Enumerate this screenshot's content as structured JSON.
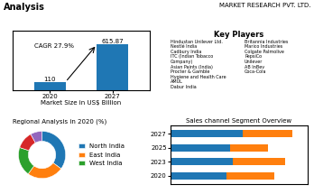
{
  "title": "Analysis",
  "subtitle": "MARKET RESEARCH PVT. LTD.",
  "chart_data": [
    {
      "type": "bar",
      "categories": [
        "2020",
        "2027"
      ],
      "values": [
        110,
        615.87
      ],
      "x_label": "Market Size in US$ Billion",
      "ylim": [
        0,
        800
      ],
      "tick_labels": "x",
      "data_labels": true,
      "annotations": [
        "CAGR 27.9%"
      ]
    },
    {
      "type": "text",
      "title": "Key Players",
      "annotations": [
        [
          "Hindustan Unilever Ltd.",
          "Nestlé India",
          "Cadbury India",
          "ITC (Indian Tobacco",
          "Company)",
          "Asian Paints (India)",
          "Procter & Gamble",
          "Hygiene and Health Care",
          "AMUL",
          "Dabur India"
        ],
        [
          "Britannia Industries",
          "Marico Industries",
          "Colgate Palmolive",
          "PepsiCo",
          "Unilever",
          "AB InBev",
          "Coca-Cola"
        ]
      ]
    },
    {
      "type": "donut",
      "title": "Regional Analysis in 2020 (%)",
      "categories": [
        "North India",
        "East India",
        "West India",
        null,
        null
      ],
      "values": [
        35,
        25,
        20,
        12,
        8
      ],
      "legend": "center left"
    },
    {
      "type": "bar",
      "title": "Sales channel Segment Overview",
      "orientation": "horizontal",
      "stacked": true,
      "categories": [
        "2020",
        "2023",
        "2025",
        "2027"
      ],
      "series": [
        {
          "values": [
            0.45,
            0.5,
            0.48,
            0.58
          ]
        },
        {
          "values": [
            0.38,
            0.42,
            0.3,
            0.4
          ]
        }
      ],
      "xlim": [
        0,
        1.1
      ],
      "tick_labels": "y"
    }
  ]
}
